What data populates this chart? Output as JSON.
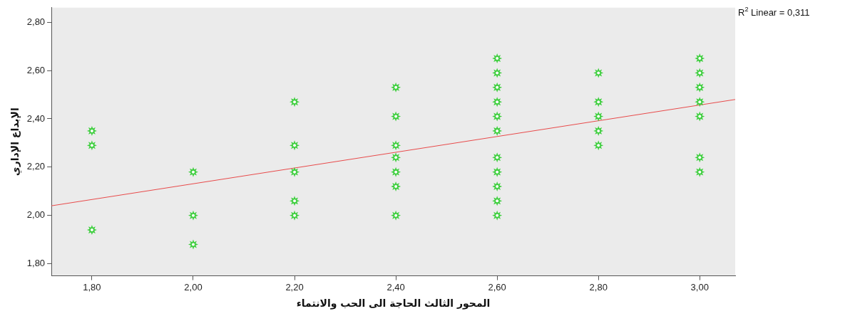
{
  "chart_data": {
    "type": "scatter",
    "xlabel": "المحور الثالث الحاجة الى الحب والانتماء",
    "ylabel": "الإبداع الإداري",
    "annotations": [
      "R$^{2}$ Linear = 0,311"
    ],
    "xlim": [
      1.72,
      3.07
    ],
    "ylim": [
      1.75,
      2.86
    ],
    "xticks": [
      {
        "value": 1.8,
        "label": "1,80"
      },
      {
        "value": 2.0,
        "label": "2,00"
      },
      {
        "value": 2.2,
        "label": "2,20"
      },
      {
        "value": 2.4,
        "label": "2,40"
      },
      {
        "value": 2.6,
        "label": "2,60"
      },
      {
        "value": 2.8,
        "label": "2,80"
      },
      {
        "value": 3.0,
        "label": "3,00"
      }
    ],
    "yticks": [
      {
        "value": 1.8,
        "label": "1,80"
      },
      {
        "value": 2.0,
        "label": "2,00"
      },
      {
        "value": 2.2,
        "label": "2,20"
      },
      {
        "value": 2.4,
        "label": "2,40"
      },
      {
        "value": 2.6,
        "label": "2,60"
      },
      {
        "value": 2.8,
        "label": "2,80"
      }
    ],
    "grid": false,
    "legend": false,
    "marker": "star",
    "series": [
      {
        "type": "scatter",
        "color": "#3fcf3f",
        "x": [
          1.8,
          1.8,
          1.8,
          2.0,
          2.0,
          2.0,
          2.2,
          2.2,
          2.2,
          2.2,
          2.2,
          2.4,
          2.4,
          2.4,
          2.4,
          2.4,
          2.4,
          2.4,
          2.6,
          2.6,
          2.6,
          2.6,
          2.6,
          2.6,
          2.6,
          2.6,
          2.6,
          2.6,
          2.6,
          2.8,
          2.8,
          2.8,
          2.8,
          2.8,
          3.0,
          3.0,
          3.0,
          3.0,
          3.0,
          3.0,
          3.0
        ],
        "values": [
          2.35,
          2.29,
          1.94,
          2.18,
          2.0,
          1.88,
          2.47,
          2.29,
          2.18,
          2.06,
          2.0,
          2.53,
          2.41,
          2.29,
          2.24,
          2.18,
          2.12,
          2.0,
          2.65,
          2.59,
          2.53,
          2.47,
          2.41,
          2.35,
          2.24,
          2.18,
          2.12,
          2.06,
          2.0,
          2.59,
          2.47,
          2.41,
          2.35,
          2.29,
          2.65,
          2.59,
          2.53,
          2.47,
          2.41,
          2.24,
          2.18
        ]
      },
      {
        "type": "line",
        "color": "#e84a4a",
        "marker": "none",
        "x": [
          1.72,
          3.07
        ],
        "values": [
          2.04,
          2.48
        ]
      }
    ]
  }
}
